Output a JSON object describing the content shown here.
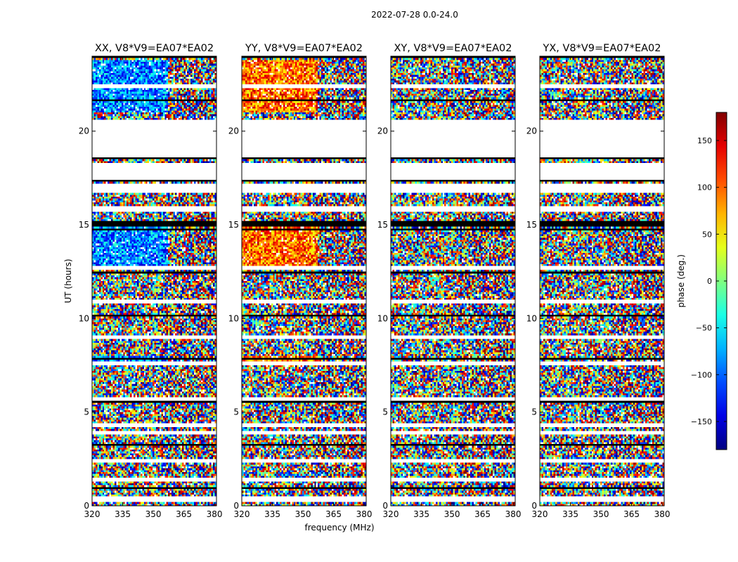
{
  "chart_data": {
    "type": "heatmap",
    "suptitle": "2022-07-28 0.0-24.0",
    "panels": [
      {
        "title": "XX, V8*V9=EA07*EA02",
        "signal": "strong-blue",
        "bias": -2.2
      },
      {
        "title": "YY, V8*V9=EA07*EA02",
        "signal": "strong-red",
        "bias": 2.5
      },
      {
        "title": "XY, V8*V9=EA07*EA02",
        "signal": "weak",
        "bias": 0.0
      },
      {
        "title": "YX, V8*V9=EA07*EA02",
        "signal": "weak",
        "bias": 0.0
      }
    ],
    "xlabel": "frequency (MHz)",
    "ylabel": "UT (hours)",
    "xlim": [
      320,
      381
    ],
    "xticks": [
      "320",
      "335",
      "350",
      "365",
      "380"
    ],
    "ylim": [
      0,
      24
    ],
    "yticks": [
      "0",
      "5",
      "10",
      "15",
      "20"
    ],
    "colorbar": {
      "label": "phase (deg.)",
      "range": [
        -180,
        180
      ],
      "ticks": [
        "150",
        "100",
        "50",
        "0",
        "−50",
        "−100",
        "−150"
      ],
      "tick_values": [
        150,
        100,
        50,
        0,
        -50,
        -100,
        -150
      ],
      "colormap": "jet"
    },
    "flagged_gaps_hours": [
      [
        0.25,
        0.5
      ],
      [
        1.3,
        1.5
      ],
      [
        2.3,
        2.45
      ],
      [
        3.8,
        4.0
      ],
      [
        4.2,
        4.4
      ],
      [
        5.6,
        5.8
      ],
      [
        7.5,
        7.7
      ],
      [
        8.9,
        9.1
      ],
      [
        10.8,
        11.0
      ],
      [
        12.6,
        12.8
      ],
      [
        15.7,
        16.0
      ],
      [
        16.7,
        17.2
      ],
      [
        17.4,
        18.3
      ],
      [
        18.6,
        19.3
      ],
      [
        20.1,
        20.6
      ],
      [
        22.3,
        22.5
      ]
    ],
    "empty_block_hours": [
      [
        19.3,
        20.5
      ]
    ],
    "vertical_flag_freq_mhz": 364
  }
}
